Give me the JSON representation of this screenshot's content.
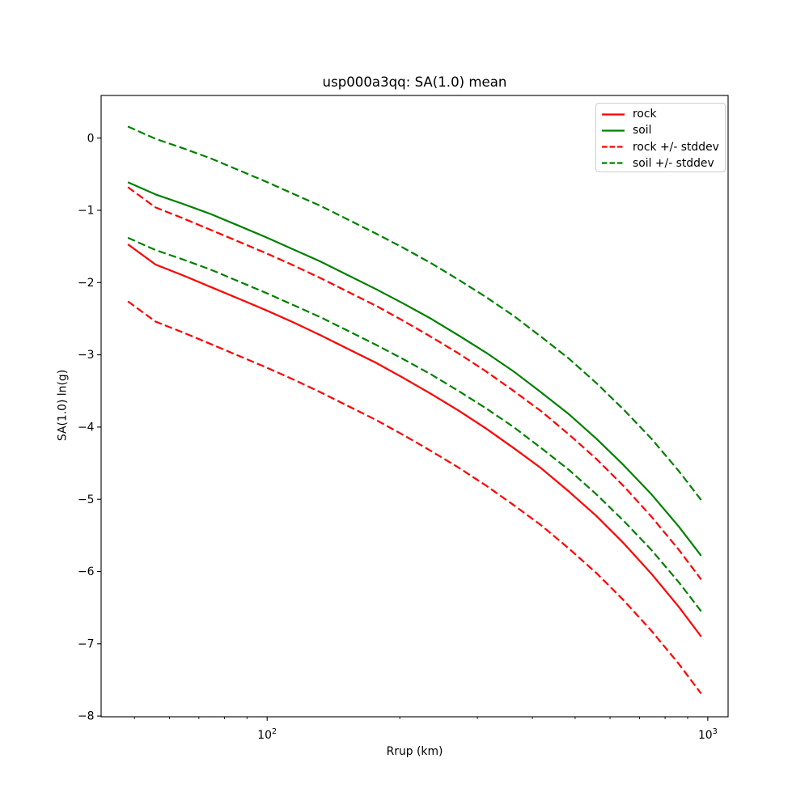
{
  "chart_data": {
    "type": "line",
    "title": "usp000a3qq: SA(1.0) mean",
    "xlabel": "Rrup (km)",
    "ylabel": "SA(1.0) ln(g)",
    "x_scale": "log",
    "y_scale": "linear",
    "grid": false,
    "xlim": [
      42,
      1112
    ],
    "ylim": [
      -8.01,
      0.59
    ],
    "x_major_ticks": [
      100,
      1000
    ],
    "x_minor_ticks": [
      50,
      60,
      70,
      80,
      90,
      200,
      300,
      400,
      500,
      600,
      700,
      800,
      900
    ],
    "y_ticks": [
      0,
      -1,
      -2,
      -3,
      -4,
      -5,
      -6,
      -7,
      -8
    ],
    "legend_position": "upper right",
    "rock_stddev_offset": 0.79,
    "soil_stddev_offset": 0.77,
    "x": [
      48.3,
      55.8,
      64.4,
      74.4,
      85.9,
      99.2,
      114.6,
      132.3,
      152.8,
      176.5,
      203.8,
      235.4,
      271.8,
      313.9,
      362.5,
      418.7,
      483.5,
      558.4,
      644.9,
      744.8,
      860.1,
      966
    ],
    "series": [
      {
        "name": "rock mean",
        "color": "#ff0000",
        "line_style": "solid",
        "values": [
          -1.47,
          -1.75,
          -1.9,
          -2.06,
          -2.22,
          -2.38,
          -2.55,
          -2.73,
          -2.92,
          -3.11,
          -3.32,
          -3.54,
          -3.77,
          -4.02,
          -4.29,
          -4.57,
          -4.89,
          -5.23,
          -5.61,
          -6.03,
          -6.49,
          -6.9
        ]
      },
      {
        "name": "soil mean",
        "color": "#008000",
        "line_style": "solid",
        "values": [
          -0.61,
          -0.78,
          -0.91,
          -1.05,
          -1.21,
          -1.37,
          -1.54,
          -1.71,
          -1.9,
          -2.09,
          -2.29,
          -2.5,
          -2.73,
          -2.97,
          -3.23,
          -3.52,
          -3.82,
          -4.16,
          -4.53,
          -4.93,
          -5.38,
          -5.78
        ]
      },
      {
        "name": "rock plus stddev",
        "color": "#ff0000",
        "line_style": "dashed",
        "values": [
          -0.68,
          -0.96,
          -1.11,
          -1.27,
          -1.43,
          -1.59,
          -1.76,
          -1.94,
          -2.13,
          -2.32,
          -2.53,
          -2.75,
          -2.98,
          -3.23,
          -3.5,
          -3.78,
          -4.1,
          -4.44,
          -4.82,
          -5.24,
          -5.7,
          -6.11
        ]
      },
      {
        "name": "rock minus stddev",
        "color": "#ff0000",
        "line_style": "dashed",
        "values": [
          -2.26,
          -2.54,
          -2.69,
          -2.85,
          -3.01,
          -3.17,
          -3.34,
          -3.52,
          -3.71,
          -3.9,
          -4.11,
          -4.33,
          -4.56,
          -4.81,
          -5.08,
          -5.36,
          -5.68,
          -6.02,
          -6.4,
          -6.82,
          -7.28,
          -7.69
        ]
      },
      {
        "name": "soil plus stddev",
        "color": "#008000",
        "line_style": "dashed",
        "values": [
          0.16,
          -0.01,
          -0.14,
          -0.28,
          -0.44,
          -0.6,
          -0.77,
          -0.94,
          -1.13,
          -1.32,
          -1.52,
          -1.73,
          -1.96,
          -2.2,
          -2.46,
          -2.75,
          -3.05,
          -3.39,
          -3.76,
          -4.16,
          -4.61,
          -5.01
        ]
      },
      {
        "name": "soil minus stddev",
        "color": "#008000",
        "line_style": "dashed",
        "values": [
          -1.38,
          -1.55,
          -1.68,
          -1.82,
          -1.98,
          -2.14,
          -2.31,
          -2.48,
          -2.67,
          -2.86,
          -3.06,
          -3.27,
          -3.5,
          -3.74,
          -4.0,
          -4.29,
          -4.59,
          -4.93,
          -5.3,
          -5.7,
          -6.15,
          -6.55
        ]
      }
    ],
    "legend": [
      {
        "label": "rock",
        "color": "#ff0000",
        "line_style": "solid"
      },
      {
        "label": "soil",
        "color": "#008000",
        "line_style": "solid"
      },
      {
        "label": "rock +/- stddev",
        "color": "#ff0000",
        "line_style": "dashed"
      },
      {
        "label": "soil +/- stddev",
        "color": "#008000",
        "line_style": "dashed"
      }
    ]
  }
}
